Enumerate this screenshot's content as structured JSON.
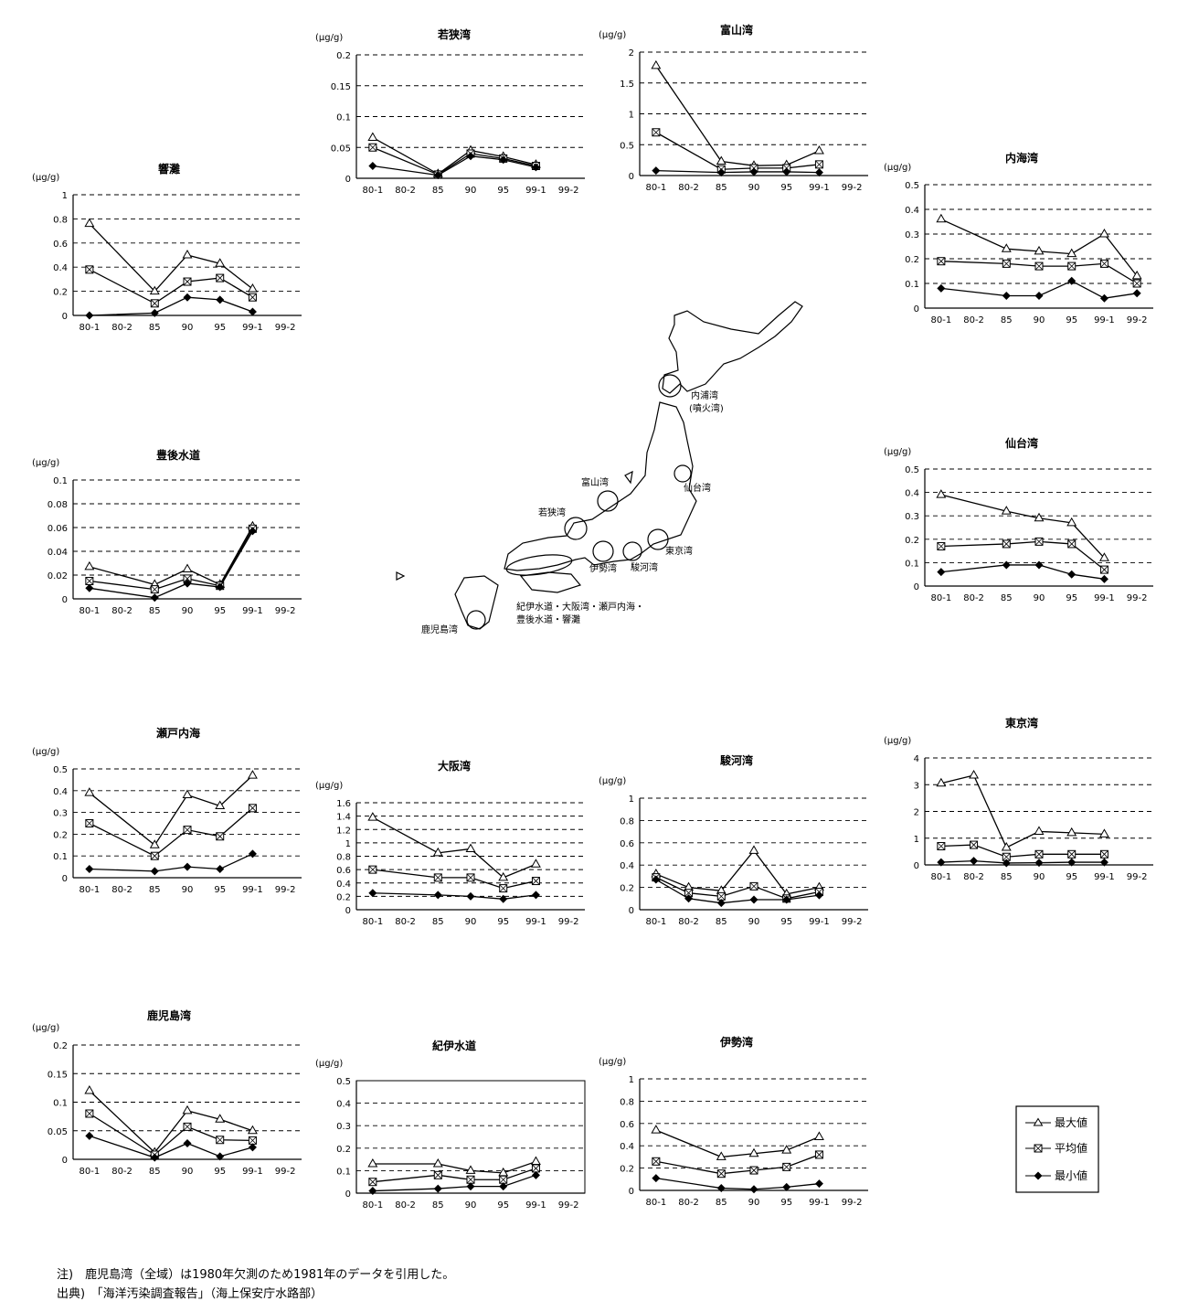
{
  "x_ticks": [
    "80-1",
    "80-2",
    "85",
    "90",
    "95",
    "99-1",
    "99-2"
  ],
  "unit": "(μg/g)",
  "legend": {
    "items": [
      {
        "label": "最大値",
        "marker": "triangle"
      },
      {
        "label": "平均値",
        "marker": "square"
      },
      {
        "label": "最小値",
        "marker": "diamond"
      }
    ]
  },
  "map": {
    "labels": [
      "内浦湾",
      "(噴火湾)",
      "仙台湾",
      "富山湾",
      "若狭湾",
      "東京湾",
      "伊勢湾",
      "駿河湾",
      "紀伊水道・大阪湾・瀬戸内海・",
      "豊後水道・響灘",
      "鹿児島湾"
    ]
  },
  "notes": {
    "note": "注)　鹿児島湾（全域）は1980年欠測のため1981年のデータを引用した。",
    "source": "出典)　「海洋汚染調査報告」（海上保安庁水路部）"
  },
  "chart_data": [
    {
      "id": "hibikinada",
      "type": "line",
      "title": "響灘",
      "ylabel": "(μg/g)",
      "ylim": [
        0,
        1
      ],
      "yticks": [
        "0",
        "0.2",
        "0.4",
        "0.6",
        "0.8",
        "1"
      ],
      "categories": [
        "80-1",
        "80-2",
        "85",
        "90",
        "95",
        "99-1",
        "99-2"
      ],
      "series": [
        {
          "name": "最大値",
          "values": [
            0.76,
            null,
            0.2,
            0.5,
            0.43,
            0.22,
            null
          ]
        },
        {
          "name": "平均値",
          "values": [
            0.38,
            null,
            0.1,
            0.28,
            0.31,
            0.15,
            null
          ]
        },
        {
          "name": "最小値",
          "values": [
            0.0,
            null,
            0.02,
            0.15,
            0.13,
            0.03,
            null
          ]
        }
      ]
    },
    {
      "id": "wakasa",
      "type": "line",
      "title": "若狭湾",
      "ylabel": "(μg/g)",
      "ylim": [
        0,
        0.2
      ],
      "yticks": [
        "0",
        "0.05",
        "0.1",
        "0.15",
        "0.2"
      ],
      "categories": [
        "80-1",
        "80-2",
        "85",
        "90",
        "95",
        "99-1",
        "99-2"
      ],
      "series": [
        {
          "name": "最大値",
          "values": [
            0.066,
            null,
            0.007,
            0.045,
            0.035,
            0.022,
            null
          ]
        },
        {
          "name": "平均値",
          "values": [
            0.05,
            null,
            0.006,
            0.04,
            0.032,
            0.02,
            null
          ]
        },
        {
          "name": "最小値",
          "values": [
            0.02,
            null,
            0.005,
            0.036,
            0.03,
            0.018,
            null
          ]
        }
      ]
    },
    {
      "id": "toyama",
      "type": "line",
      "title": "富山湾",
      "ylabel": "(μg/g)",
      "ylim": [
        0,
        2
      ],
      "yticks": [
        "0",
        "0.5",
        "1",
        "1.5",
        "2"
      ],
      "categories": [
        "80-1",
        "80-2",
        "85",
        "90",
        "95",
        "99-1",
        "99-2"
      ],
      "series": [
        {
          "name": "最大値",
          "values": [
            1.78,
            null,
            0.23,
            0.16,
            0.17,
            0.4,
            null
          ]
        },
        {
          "name": "平均値",
          "values": [
            0.7,
            null,
            0.1,
            0.12,
            0.12,
            0.18,
            null
          ]
        },
        {
          "name": "最小値",
          "values": [
            0.08,
            null,
            0.05,
            0.06,
            0.06,
            0.05,
            null
          ]
        }
      ]
    },
    {
      "id": "uchiura",
      "type": "line",
      "title": "内海湾",
      "ylabel": "(μg/g)",
      "ylim": [
        0,
        0.5
      ],
      "yticks": [
        "0",
        "0.1",
        "0.2",
        "0.3",
        "0.4",
        "0.5"
      ],
      "categories": [
        "80-1",
        "80-2",
        "85",
        "90",
        "95",
        "99-1",
        "99-2"
      ],
      "series": [
        {
          "name": "最大値",
          "values": [
            0.36,
            null,
            0.24,
            0.23,
            0.22,
            0.3,
            0.13
          ]
        },
        {
          "name": "平均値",
          "values": [
            0.19,
            null,
            0.18,
            0.17,
            0.17,
            0.18,
            0.1
          ]
        },
        {
          "name": "最小値",
          "values": [
            0.08,
            null,
            0.05,
            0.05,
            0.11,
            0.04,
            0.06
          ]
        }
      ]
    },
    {
      "id": "bungo",
      "type": "line",
      "title": "豊後水道",
      "ylabel": "(μg/g)",
      "ylim": [
        0,
        0.1
      ],
      "yticks": [
        "0",
        "0.02",
        "0.04",
        "0.06",
        "0.08",
        "0.1"
      ],
      "categories": [
        "80-1",
        "80-2",
        "85",
        "90",
        "95",
        "99-1",
        "99-2"
      ],
      "series": [
        {
          "name": "最大値",
          "values": [
            0.027,
            null,
            0.012,
            0.025,
            0.012,
            0.061,
            null
          ]
        },
        {
          "name": "平均値",
          "values": [
            0.015,
            null,
            0.008,
            0.017,
            0.011,
            0.059,
            null
          ]
        },
        {
          "name": "最小値",
          "values": [
            0.009,
            null,
            0.001,
            0.013,
            0.01,
            0.057,
            null
          ]
        }
      ]
    },
    {
      "id": "sendai",
      "type": "line",
      "title": "仙台湾",
      "ylabel": "(μg/g)",
      "ylim": [
        0,
        0.5
      ],
      "yticks": [
        "0",
        "0.1",
        "0.2",
        "0.3",
        "0.4",
        "0.5"
      ],
      "categories": [
        "80-1",
        "80-2",
        "85",
        "90",
        "95",
        "99-1",
        "99-2"
      ],
      "series": [
        {
          "name": "最大値",
          "values": [
            0.39,
            null,
            0.32,
            0.29,
            0.27,
            0.12,
            null
          ]
        },
        {
          "name": "平均値",
          "values": [
            0.17,
            null,
            0.18,
            0.19,
            0.18,
            0.07,
            null
          ]
        },
        {
          "name": "最小値",
          "values": [
            0.06,
            null,
            0.09,
            0.09,
            0.05,
            0.03,
            null
          ]
        }
      ]
    },
    {
      "id": "setonaikai",
      "type": "line",
      "title": "瀬戸内海",
      "ylabel": "(μg/g)",
      "ylim": [
        0,
        0.5
      ],
      "yticks": [
        "0",
        "0.1",
        "0.2",
        "0.3",
        "0.4",
        "0.5"
      ],
      "categories": [
        "80-1",
        "80-2",
        "85",
        "90",
        "95",
        "99-1",
        "99-2"
      ],
      "series": [
        {
          "name": "最大値",
          "values": [
            0.39,
            null,
            0.15,
            0.38,
            0.33,
            0.47,
            null
          ]
        },
        {
          "name": "平均値",
          "values": [
            0.25,
            null,
            0.1,
            0.22,
            0.19,
            0.32,
            null
          ]
        },
        {
          "name": "最小値",
          "values": [
            0.04,
            null,
            0.03,
            0.05,
            0.04,
            0.11,
            null
          ]
        }
      ]
    },
    {
      "id": "osaka",
      "type": "line",
      "title": "大阪湾",
      "ylabel": "(μg/g)",
      "ylim": [
        0,
        1.6
      ],
      "yticks": [
        "0",
        "0.2",
        "0.4",
        "0.6",
        "0.8",
        "1",
        "1.2",
        "1.4",
        "1.6"
      ],
      "categories": [
        "80-1",
        "80-2",
        "85",
        "90",
        "95",
        "99-1",
        "99-2"
      ],
      "series": [
        {
          "name": "最大値",
          "values": [
            1.38,
            null,
            0.85,
            0.91,
            0.48,
            0.68,
            null
          ]
        },
        {
          "name": "平均値",
          "values": [
            0.6,
            null,
            0.48,
            0.48,
            0.32,
            0.43,
            null
          ]
        },
        {
          "name": "最小値",
          "values": [
            0.25,
            null,
            0.22,
            0.2,
            0.16,
            0.22,
            null
          ]
        }
      ]
    },
    {
      "id": "suruga",
      "type": "line",
      "title": "駿河湾",
      "ylabel": "(μg/g)",
      "ylim": [
        0,
        1
      ],
      "yticks": [
        "0",
        "0.2",
        "0.4",
        "0.6",
        "0.8",
        "1"
      ],
      "categories": [
        "80-1",
        "80-2",
        "85",
        "90",
        "95",
        "99-1",
        "99-2"
      ],
      "series": [
        {
          "name": "最大値",
          "values": [
            0.32,
            0.2,
            0.17,
            0.53,
            0.14,
            0.2,
            null
          ]
        },
        {
          "name": "平均値",
          "values": [
            0.29,
            0.15,
            0.12,
            0.21,
            0.1,
            0.16,
            null
          ]
        },
        {
          "name": "最小値",
          "values": [
            0.27,
            0.1,
            0.06,
            0.09,
            0.09,
            0.13,
            null
          ]
        }
      ]
    },
    {
      "id": "tokyo",
      "type": "line",
      "title": "東京湾",
      "ylabel": "(μg/g)",
      "ylim": [
        0,
        4
      ],
      "yticks": [
        "0",
        "1",
        "2",
        "3",
        "4"
      ],
      "categories": [
        "80-1",
        "80-2",
        "85",
        "90",
        "95",
        "99-1",
        "99-2"
      ],
      "series": [
        {
          "name": "最大値",
          "values": [
            3.05,
            3.35,
            0.65,
            1.25,
            1.2,
            1.15,
            null
          ]
        },
        {
          "name": "平均値",
          "values": [
            0.7,
            0.75,
            0.3,
            0.4,
            0.4,
            0.4,
            null
          ]
        },
        {
          "name": "最小値",
          "values": [
            0.1,
            0.15,
            0.07,
            0.08,
            0.1,
            0.1,
            null
          ]
        }
      ]
    },
    {
      "id": "kagoshima",
      "type": "line",
      "title": "鹿児島湾",
      "ylabel": "(μg/g)",
      "ylim": [
        0,
        0.2
      ],
      "yticks": [
        "0",
        "0.05",
        "0.1",
        "0.15",
        "0.2"
      ],
      "categories": [
        "80-1",
        "80-2",
        "85",
        "90",
        "95",
        "99-1",
        "99-2"
      ],
      "series": [
        {
          "name": "最大値",
          "values": [
            0.12,
            null,
            0.012,
            0.085,
            0.07,
            0.05,
            null
          ]
        },
        {
          "name": "平均値",
          "values": [
            0.08,
            null,
            0.008,
            0.057,
            0.034,
            0.033,
            null
          ]
        },
        {
          "name": "最小値",
          "values": [
            0.041,
            null,
            0.003,
            0.028,
            0.005,
            0.021,
            null
          ]
        }
      ]
    },
    {
      "id": "kii",
      "type": "line",
      "title": "紀伊水道",
      "ylabel": "(μg/g)",
      "ylim": [
        0,
        0.5
      ],
      "yticks": [
        "0",
        "0.1",
        "0.2",
        "0.3",
        "0.4",
        "0.5"
      ],
      "categories": [
        "80-1",
        "80-2",
        "85",
        "90",
        "95",
        "99-1",
        "99-2"
      ],
      "series": [
        {
          "name": "最大値",
          "values": [
            0.13,
            null,
            0.13,
            0.1,
            0.09,
            0.14,
            null
          ]
        },
        {
          "name": "平均値",
          "values": [
            0.05,
            null,
            0.08,
            0.06,
            0.06,
            0.11,
            null
          ]
        },
        {
          "name": "最小値",
          "values": [
            0.01,
            null,
            0.02,
            0.03,
            0.03,
            0.08,
            null
          ]
        }
      ]
    },
    {
      "id": "ise",
      "type": "line",
      "title": "伊勢湾",
      "ylabel": "(μg/g)",
      "ylim": [
        0,
        1
      ],
      "yticks": [
        "0",
        "0.2",
        "0.4",
        "0.6",
        "0.8",
        "1"
      ],
      "categories": [
        "80-1",
        "80-2",
        "85",
        "90",
        "95",
        "99-1",
        "99-2"
      ],
      "series": [
        {
          "name": "最大値",
          "values": [
            0.54,
            null,
            0.3,
            0.33,
            0.36,
            0.48,
            null
          ]
        },
        {
          "name": "平均値",
          "values": [
            0.26,
            null,
            0.15,
            0.18,
            0.21,
            0.32,
            null
          ]
        },
        {
          "name": "最小値",
          "values": [
            0.11,
            null,
            0.02,
            0.01,
            0.03,
            0.06,
            null
          ]
        }
      ]
    }
  ]
}
